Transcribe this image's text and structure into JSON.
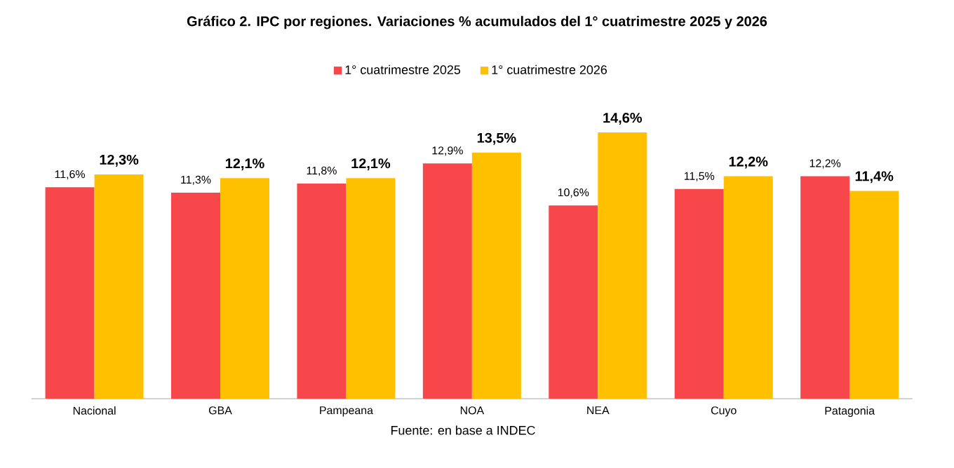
{
  "chart_data": {
    "type": "bar",
    "title": "Gráfico 2. IPC por regiones. Variaciones % acumulados del 1° cuatrimestre 2025 y 2026",
    "categories": [
      "Nacional",
      "GBA",
      "Pampeana",
      "NOA",
      "NEA",
      "Cuyo",
      "Patagonia"
    ],
    "series": [
      {
        "name": "1° cuatrimestre 2025",
        "color": "#f7474b",
        "values": [
          11.6,
          11.3,
          11.8,
          12.9,
          10.6,
          11.5,
          12.2
        ],
        "value_labels": [
          "11,6%",
          "11,3%",
          "11,8%",
          "12,9%",
          "10,6%",
          "11,5%",
          "12,2%"
        ]
      },
      {
        "name": "1° cuatrimestre 2026",
        "color": "#ffc000",
        "values": [
          12.3,
          12.1,
          12.1,
          13.5,
          14.6,
          12.2,
          11.4
        ],
        "value_labels": [
          "**12,3%**",
          "**12,1%**",
          "**12,1%**",
          "**13,5%**",
          "**14,6%**",
          "**12,2%**",
          "**11,4%**"
        ]
      }
    ],
    "legend": "top",
    "annotations": [
      "Fuente: en base a INDEC"
    ]
  }
}
